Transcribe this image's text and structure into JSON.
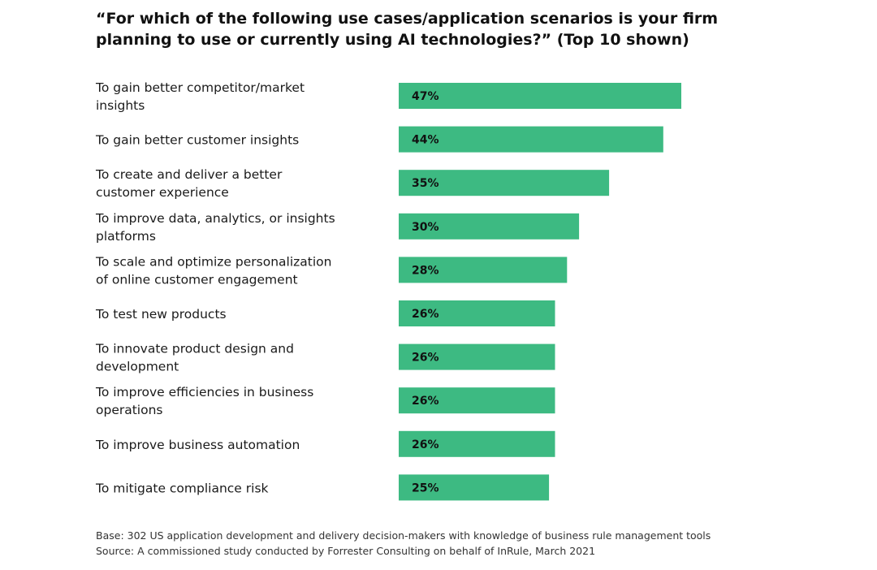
{
  "chart_data": {
    "type": "bar",
    "orientation": "horizontal",
    "title": "“For which of the following use cases/application scenarios is your firm planning to use or currently using AI technologies?” (Top 10 shown)",
    "categories": [
      "To gain better competitor/market insights",
      "To gain better customer insights",
      "To create and deliver a better customer experience",
      "To improve data, analytics, or insights platforms",
      "To scale and optimize personalization of online customer engagement",
      "To test new products",
      "To innovate product design and development",
      "To improve efficiencies in business operations",
      "To improve business automation",
      "To mitigate compliance risk"
    ],
    "values": [
      47,
      44,
      35,
      30,
      28,
      26,
      26,
      26,
      26,
      25
    ],
    "value_labels": [
      "47%",
      "44%",
      "35%",
      "30%",
      "28%",
      "26%",
      "26%",
      "26%",
      "26%",
      "25%"
    ],
    "unit": "%",
    "xlim": [
      0,
      100
    ],
    "grid": false,
    "legend": "none",
    "bar_color": "#3dba82"
  },
  "footnotes": {
    "base": "Base: 302 US application development and delivery decision-makers with knowledge of business rule management tools",
    "source": "Source: A commissioned study conducted by Forrester Consulting on behalf of InRule, March 2021"
  }
}
